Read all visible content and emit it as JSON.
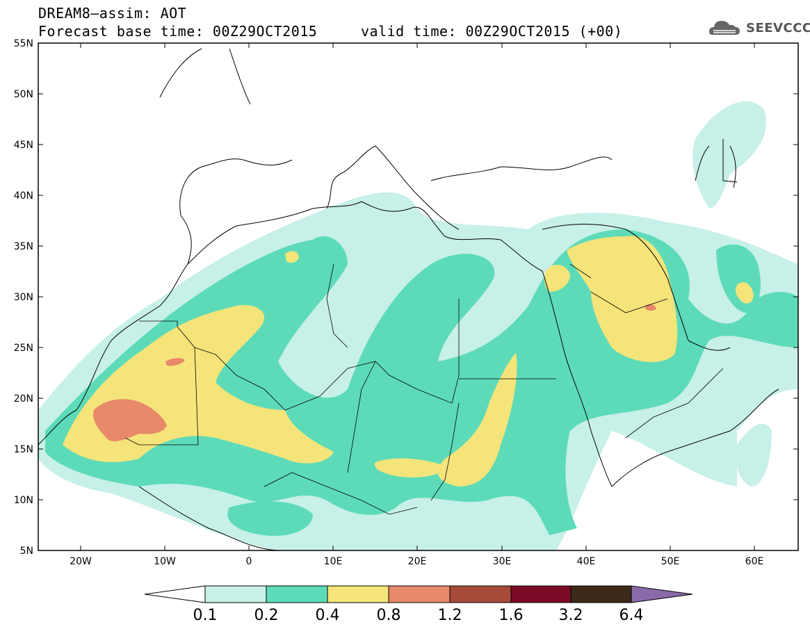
{
  "header": {
    "title_line1": "DREAM8–assim: AOT",
    "title_line2": "Forecast base time: 00Z29OCT2015     valid time: 00Z29OCT2015 (+00)"
  },
  "logo": {
    "text": "SEEVCCC",
    "icon": "cloud-logo-icon"
  },
  "map": {
    "lat_labels": [
      "55N",
      "50N",
      "45N",
      "40N",
      "35N",
      "30N",
      "25N",
      "20N",
      "15N",
      "10N",
      "5N"
    ],
    "lon_labels": [
      "20W",
      "10W",
      "0",
      "10E",
      "20E",
      "30E",
      "40E",
      "50E",
      "60E"
    ],
    "lon_range": [
      -25,
      65
    ],
    "lat_range": [
      5,
      55
    ]
  },
  "colorbar": {
    "levels": [
      "0.1",
      "0.2",
      "0.4",
      "0.8",
      "1.2",
      "1.6",
      "3.2",
      "6.4"
    ],
    "colors": [
      "#c7f0e8",
      "#5ddbb8",
      "#f5e47a",
      "#e8896a",
      "#a84a3a",
      "#7a0a26",
      "#3e2a18",
      "#8a6aa8"
    ]
  }
}
